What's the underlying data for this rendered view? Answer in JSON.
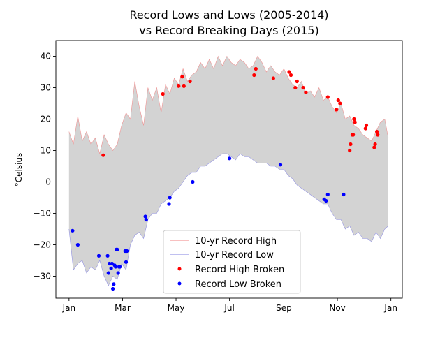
{
  "chart_data": {
    "type": "line",
    "title": "Record Lows and Lows (2005-2014)",
    "subtitle": "vs Record Breaking Days (2015)",
    "xlabel": "",
    "ylabel": "°Celsius",
    "xlim": [
      -15,
      380
    ],
    "ylim": [
      -37,
      45
    ],
    "grid": false,
    "legend_position": "lower-center",
    "x_ticks": [
      {
        "label": "Jan",
        "value": 0
      },
      {
        "label": "Mar",
        "value": 61
      },
      {
        "label": "May",
        "value": 122
      },
      {
        "label": "Jul",
        "value": 183
      },
      {
        "label": "Sep",
        "value": 245
      },
      {
        "label": "Nov",
        "value": 306
      },
      {
        "label": "Jan",
        "value": 367
      }
    ],
    "y_ticks": [
      -30,
      -20,
      -10,
      0,
      10,
      20,
      30,
      40
    ],
    "series": [
      {
        "name": "10-yr Record High",
        "kind": "line",
        "color": "#f08080",
        "x": [
          0,
          5,
          10,
          15,
          20,
          25,
          30,
          35,
          40,
          45,
          50,
          55,
          60,
          65,
          70,
          75,
          80,
          85,
          90,
          95,
          100,
          105,
          110,
          115,
          120,
          125,
          130,
          135,
          140,
          145,
          150,
          155,
          160,
          165,
          170,
          175,
          180,
          185,
          190,
          195,
          200,
          205,
          210,
          215,
          220,
          225,
          230,
          235,
          240,
          245,
          250,
          255,
          260,
          265,
          270,
          275,
          280,
          285,
          290,
          295,
          300,
          305,
          310,
          315,
          320,
          325,
          330,
          335,
          340,
          345,
          350,
          355,
          360,
          364
        ],
        "y": [
          16,
          12,
          21,
          13,
          16,
          12,
          14,
          9,
          15,
          12,
          10,
          12,
          18,
          22,
          20,
          32,
          24,
          18,
          30,
          26,
          30,
          22,
          31,
          28,
          33,
          31,
          36,
          32,
          34,
          35,
          38,
          36,
          39,
          36,
          40,
          37,
          40,
          38,
          37,
          39,
          38,
          36,
          37,
          40,
          38,
          35,
          37,
          35,
          34,
          36,
          33,
          31,
          30,
          32,
          28,
          29,
          27,
          30,
          26,
          27,
          24,
          22,
          25,
          20,
          21,
          18,
          17,
          15,
          14,
          13,
          16,
          19,
          20,
          14
        ]
      },
      {
        "name": "10-yr Record Low",
        "kind": "line",
        "color": "#8080e0",
        "x": [
          0,
          5,
          10,
          15,
          20,
          25,
          30,
          35,
          40,
          45,
          50,
          55,
          60,
          65,
          70,
          75,
          80,
          85,
          90,
          95,
          100,
          105,
          110,
          115,
          120,
          125,
          130,
          135,
          140,
          145,
          150,
          155,
          160,
          165,
          170,
          175,
          180,
          185,
          190,
          195,
          200,
          205,
          210,
          215,
          220,
          225,
          230,
          235,
          240,
          245,
          250,
          255,
          260,
          265,
          270,
          275,
          280,
          285,
          290,
          295,
          300,
          305,
          310,
          315,
          320,
          325,
          330,
          335,
          340,
          345,
          350,
          355,
          360,
          364
        ],
        "y": [
          -15,
          -28,
          -26,
          -25,
          -29,
          -27,
          -28,
          -25,
          -30,
          -33,
          -30,
          -31,
          -26,
          -28,
          -20,
          -17,
          -16,
          -18,
          -12,
          -10,
          -10,
          -7,
          -6,
          -5,
          -3,
          -2,
          0,
          2,
          3,
          3,
          5,
          5,
          6,
          7,
          8,
          9,
          9,
          8,
          7,
          9,
          8,
          8,
          7,
          6,
          6,
          6,
          5,
          5,
          4,
          4,
          2,
          1,
          -1,
          -2,
          -3,
          -4,
          -5,
          -6,
          -7,
          -7,
          -10,
          -12,
          -12,
          -15,
          -14,
          -17,
          -16,
          -18,
          -18,
          -19,
          -16,
          -18,
          -15,
          -14
        ]
      },
      {
        "name": "Record High Broken",
        "kind": "scatter",
        "color": "#ff0000",
        "x": [
          39,
          107,
          125,
          129,
          131,
          138,
          211,
          213,
          233,
          251,
          253,
          258,
          260,
          267,
          270,
          295,
          305,
          307,
          309,
          325,
          320,
          321,
          323,
          324,
          325,
          326,
          338,
          339,
          348,
          349,
          351,
          352
        ],
        "y": [
          8.5,
          28,
          30.5,
          33.5,
          30.5,
          32,
          34,
          36,
          33,
          35,
          34,
          30,
          32,
          30,
          28.5,
          27,
          23,
          26,
          25,
          20,
          10,
          12,
          15,
          15,
          20,
          19,
          17,
          18,
          11,
          12,
          16,
          15
        ]
      },
      {
        "name": "Record Low Broken",
        "kind": "scatter",
        "color": "#0000ff",
        "x": [
          4,
          10,
          34,
          44,
          45,
          46,
          48,
          49,
          50,
          51,
          52,
          53,
          54,
          55,
          56,
          57,
          58,
          64,
          65,
          66,
          87,
          88,
          114,
          115,
          141,
          183,
          241,
          291,
          293,
          295,
          313
        ],
        "y": [
          -15.5,
          -20,
          -23.5,
          -23.5,
          -29,
          -26,
          -27.5,
          -26,
          -34,
          -32.5,
          -26.5,
          -27,
          -21.5,
          -21.5,
          -29,
          -27,
          -27,
          -22,
          -25.5,
          -22,
          -11,
          -12,
          -7,
          -5,
          0,
          7.5,
          5.5,
          -5.5,
          -6,
          -4,
          -4
        ]
      }
    ]
  }
}
